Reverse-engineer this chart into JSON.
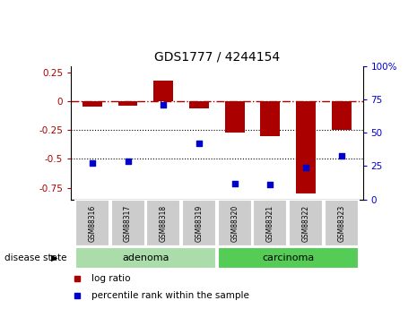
{
  "title": "GDS1777 / 4244154",
  "samples": [
    "GSM88316",
    "GSM88317",
    "GSM88318",
    "GSM88319",
    "GSM88320",
    "GSM88321",
    "GSM88322",
    "GSM88323"
  ],
  "log_ratio": [
    -0.05,
    -0.04,
    0.18,
    -0.06,
    -0.27,
    -0.3,
    -0.8,
    -0.25
  ],
  "percentile_rank": [
    27,
    29,
    71,
    42,
    12,
    11,
    24,
    33
  ],
  "disease_groups": [
    {
      "label": "adenoma",
      "indices": [
        0,
        1,
        2,
        3
      ],
      "color": "#aaddaa"
    },
    {
      "label": "carcinoma",
      "indices": [
        4,
        5,
        6,
        7
      ],
      "color": "#55cc55"
    }
  ],
  "bar_color": "#aa0000",
  "dot_color": "#0000cc",
  "ylim_left": [
    -0.85,
    0.3
  ],
  "ylim_right": [
    0,
    100
  ],
  "yticks_left": [
    0.25,
    0.0,
    -0.25,
    -0.5,
    -0.75
  ],
  "yticks_right": [
    100,
    75,
    50,
    25,
    0
  ],
  "hline_y": 0.0,
  "dotted_lines": [
    -0.25,
    -0.5
  ],
  "legend_items": [
    {
      "label": "log ratio",
      "color": "#aa0000"
    },
    {
      "label": "percentile rank within the sample",
      "color": "#0000cc"
    }
  ],
  "disease_state_label": "disease state",
  "bar_width": 0.55,
  "sample_box_color": "#cccccc",
  "background_color": "#ffffff"
}
